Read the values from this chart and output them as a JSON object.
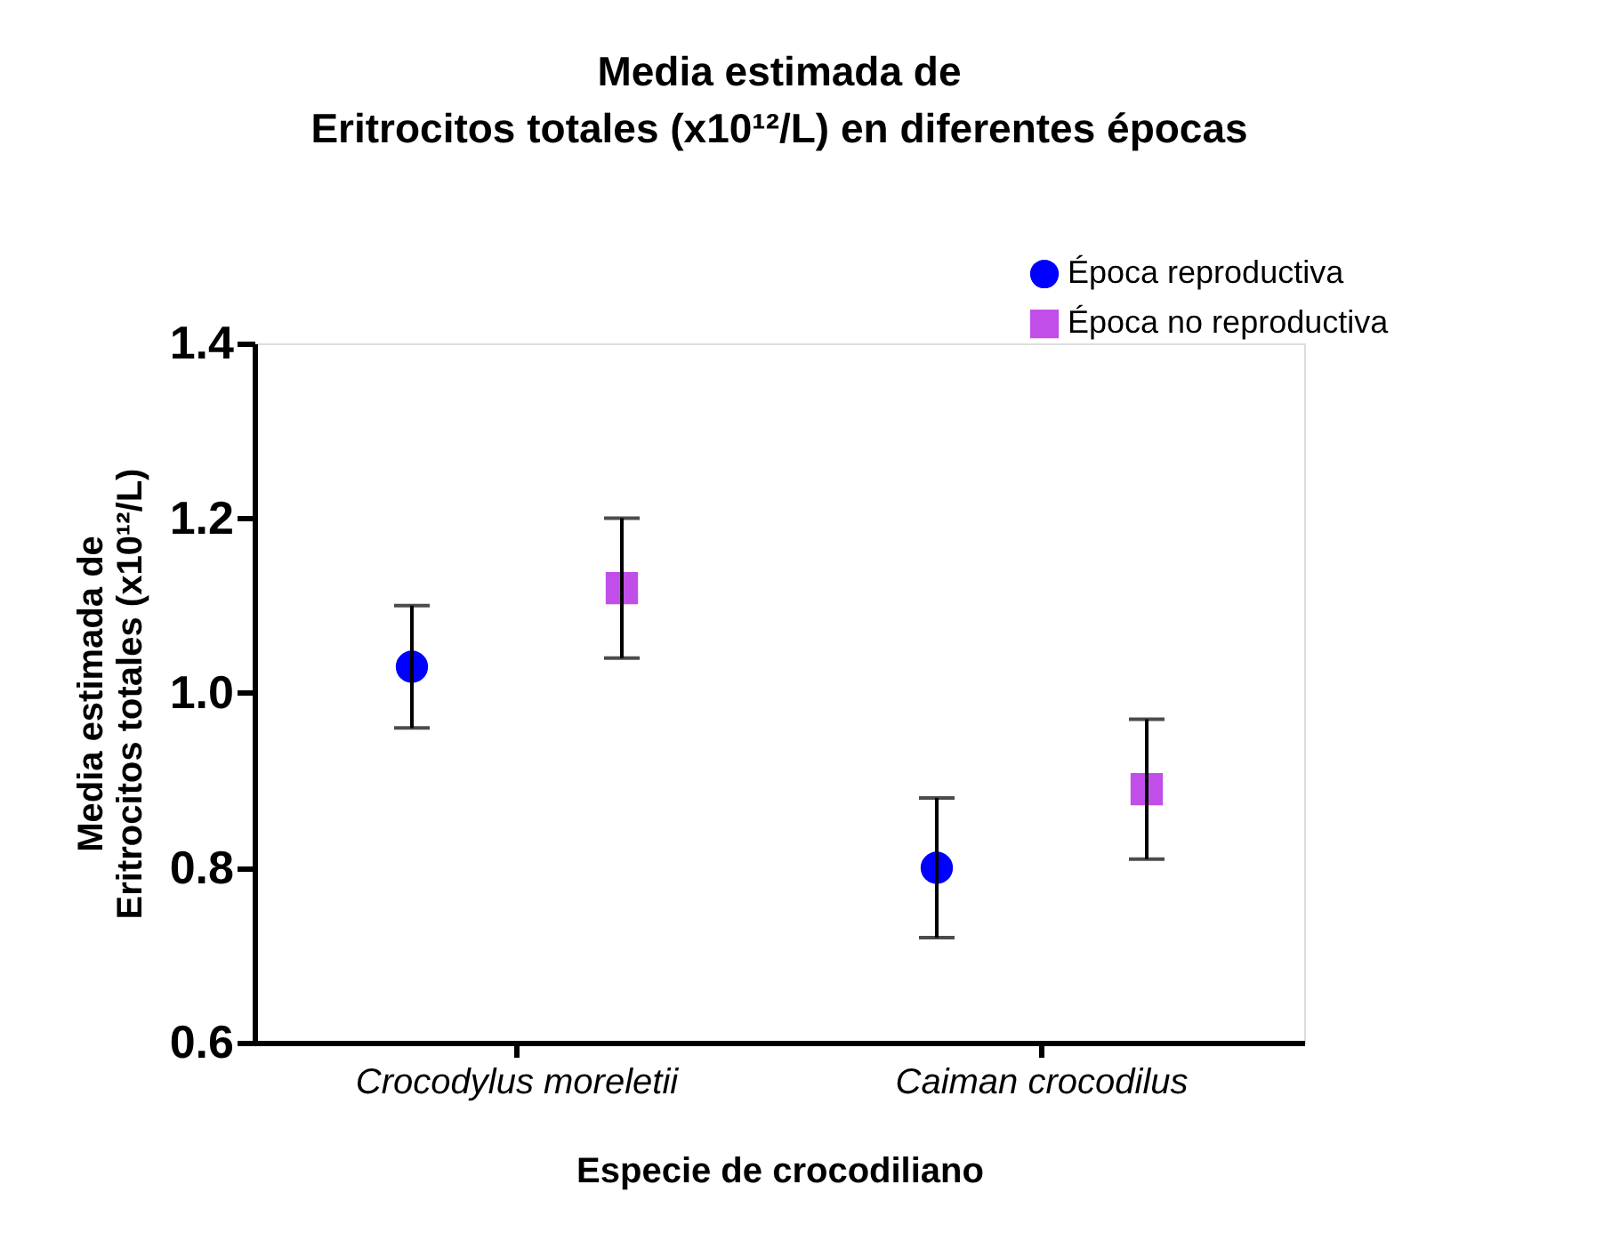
{
  "chart_data": {
    "type": "scatter",
    "title": "Media estimada de\nEritrocitos totales (x10¹²/L) en diferentes épocas",
    "xlabel": "Especie de crocodiliano",
    "ylabel": "Media estimada de\nEritrocitos totales (x10¹²/L)",
    "categories": [
      "Crocodylus moreletii",
      "Caiman crocodilus"
    ],
    "series": [
      {
        "name": "Época reproductiva",
        "color": "#0000ff",
        "marker": "circle",
        "values": [
          1.03,
          0.8
        ],
        "errors": [
          [
            0.96,
            1.1
          ],
          [
            0.72,
            0.88
          ]
        ]
      },
      {
        "name": "Época no reproductiva",
        "color": "#c14ee8",
        "marker": "square",
        "values": [
          1.12,
          0.89
        ],
        "errors": [
          [
            1.04,
            1.2
          ],
          [
            0.81,
            0.97
          ]
        ]
      }
    ],
    "ylim": [
      0.6,
      1.4
    ],
    "yticks": [
      {
        "value": 0.6,
        "label": "0.6"
      },
      {
        "value": 0.8,
        "label": "0.8"
      },
      {
        "value": 1,
        "label": "1.0"
      },
      {
        "value": 1.2,
        "label": "1.2"
      },
      {
        "value": 1.4,
        "label": "1.4"
      }
    ],
    "grid": false,
    "legend": "top right"
  }
}
